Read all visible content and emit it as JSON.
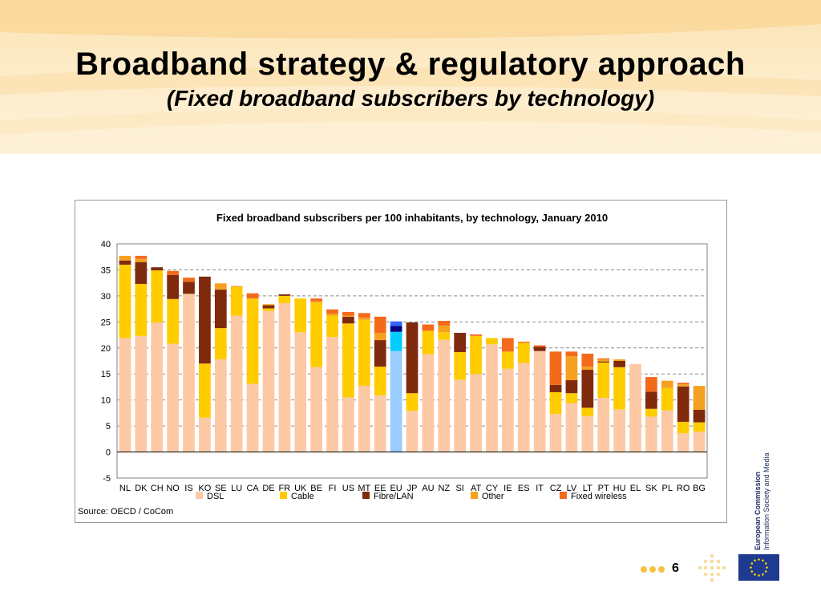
{
  "slide": {
    "title": "Broadband strategy & regulatory approach",
    "subtitle": "(Fixed broadband subscribers by technology)",
    "page_number": "6",
    "org_line1": "European Commission",
    "org_line2": "Information Society and Media"
  },
  "chart_data": {
    "type": "bar",
    "stacked": true,
    "title": "Fixed broadband subscribers per 100 inhabitants, by technology, January 2010",
    "source": "Source: OECD / CoCom",
    "ylim": [
      -5,
      40
    ],
    "yticks": [
      40,
      35,
      30,
      25,
      20,
      15,
      10,
      5,
      0,
      -5
    ],
    "grid": true,
    "legend_position": "bottom",
    "categories": [
      "NL",
      "DK",
      "CH",
      "NO",
      "IS",
      "KO",
      "SE",
      "LU",
      "CA",
      "DE",
      "FR",
      "UK",
      "BE",
      "FI",
      "US",
      "MT",
      "EE",
      "EU",
      "JP",
      "AU",
      "NZ",
      "SI",
      "AT",
      "CY",
      "IE",
      "ES",
      "IT",
      "CZ",
      "LV",
      "LT",
      "PT",
      "HU",
      "EL",
      "SK",
      "PL",
      "RO",
      "BG"
    ],
    "series": [
      {
        "name": "DSL",
        "color": "#fcc9a4",
        "values": [
          21.9,
          22.3,
          24.9,
          20.8,
          30.4,
          6.6,
          17.8,
          26.2,
          13.1,
          27.1,
          28.6,
          23.0,
          16.3,
          22.1,
          10.5,
          12.7,
          10.9,
          0,
          7.9,
          18.8,
          21.6,
          13.9,
          15.0,
          20.7,
          16.0,
          17.1,
          19.4,
          7.3,
          9.4,
          6.9,
          10.4,
          8.2,
          16.9,
          6.8,
          8.0,
          3.6,
          3.9
        ]
      },
      {
        "name": "Cable",
        "color": "#ffcc00",
        "values": [
          14.1,
          10.0,
          10.0,
          8.6,
          0,
          10.4,
          6.0,
          5.5,
          16.4,
          0.5,
          1.4,
          6.5,
          12.4,
          4.1,
          14.2,
          12.7,
          5.5,
          0,
          3.4,
          4.5,
          1.4,
          5.3,
          7.3,
          1.2,
          3.3,
          3.9,
          0,
          4.2,
          1.9,
          1.6,
          6.8,
          8.1,
          0,
          1.5,
          4.3,
          2.2,
          1.8
        ]
      },
      {
        "name": "Fibre/LAN",
        "color": "#7f2a0d",
        "values": [
          0.8,
          4.2,
          0.6,
          4.6,
          2.3,
          16.7,
          7.4,
          0,
          0,
          0.6,
          0.3,
          0,
          0,
          0,
          1.3,
          0,
          5.1,
          0,
          13.6,
          0,
          0,
          3.7,
          0,
          0,
          0,
          0,
          0.8,
          1.4,
          2.5,
          7.3,
          0.2,
          1.2,
          0,
          3.3,
          0,
          6.8,
          2.4
        ]
      },
      {
        "name": "Other",
        "color": "#f5a020",
        "values": [
          0.9,
          0.6,
          0,
          0,
          0,
          0,
          1.2,
          0.2,
          0,
          0.2,
          0,
          0,
          0.3,
          0.4,
          0.2,
          0.4,
          1.4,
          0,
          0,
          0,
          1.3,
          0,
          0,
          0,
          0,
          0,
          0,
          0,
          4.6,
          0.6,
          0.4,
          0.3,
          0,
          0,
          1.4,
          0.4,
          4.6
        ]
      },
      {
        "name": "Fixed wireless",
        "color": "#f46a1b",
        "values": [
          0,
          0.6,
          0,
          0.8,
          0.8,
          0,
          0,
          0,
          1.0,
          0,
          0,
          0,
          0.5,
          0.8,
          0.7,
          0.9,
          3.1,
          0,
          0,
          1.2,
          0.9,
          0,
          0.3,
          0,
          2.6,
          0.2,
          0.3,
          6.4,
          0.9,
          2.5,
          0.2,
          0,
          0,
          2.8,
          0,
          0.3,
          0
        ]
      }
    ],
    "eu_bar": {
      "category": "EU",
      "segments": [
        {
          "name": "DSL",
          "value": 19.4,
          "color": "#99ccff"
        },
        {
          "name": "Cable",
          "value": 3.7,
          "color": "#00ccff"
        },
        {
          "name": "Fibre/LAN",
          "value": 1.1,
          "color": "#000080"
        },
        {
          "name": "Fixed wireless",
          "value": 0.9,
          "color": "#3366ff"
        }
      ]
    }
  }
}
